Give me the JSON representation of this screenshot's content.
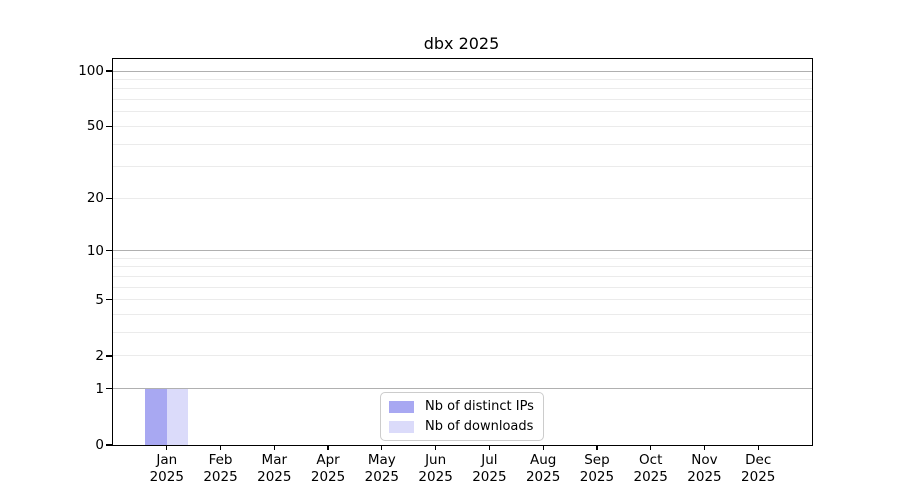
{
  "figure": {
    "background": "#ffffff"
  },
  "chart_data": {
    "type": "bar",
    "title": "dbx 2025",
    "xlabel": "",
    "ylabel": "",
    "categories": [
      "Jan",
      "Feb",
      "Mar",
      "Apr",
      "May",
      "Jun",
      "Jul",
      "Aug",
      "Sep",
      "Oct",
      "Nov",
      "Dec"
    ],
    "x_year_label": "2025",
    "series": [
      {
        "name": "Nb of distinct IPs",
        "color": "#a8a8f2",
        "values": [
          1,
          0,
          0,
          0,
          0,
          0,
          0,
          0,
          0,
          0,
          0,
          0
        ]
      },
      {
        "name": "Nb of downloads",
        "color": "#dbdbfa",
        "values": [
          1,
          0,
          0,
          0,
          0,
          0,
          0,
          0,
          0,
          0,
          0,
          0
        ]
      }
    ],
    "yscale": "log1p",
    "ylim": [
      0,
      117
    ],
    "y_tick_values": [
      0,
      1,
      2,
      5,
      10,
      20,
      50,
      100
    ],
    "grid": {
      "major_values": [
        1,
        10,
        100
      ],
      "minor_values": [
        2,
        3,
        4,
        5,
        6,
        7,
        8,
        9,
        20,
        30,
        40,
        50,
        60,
        70,
        80,
        90
      ],
      "major_color": "#b0b0b0",
      "minor_color": "#ebebeb"
    },
    "legend": {
      "position": "lower center",
      "items": [
        "Nb of distinct IPs",
        "Nb of downloads"
      ]
    }
  }
}
